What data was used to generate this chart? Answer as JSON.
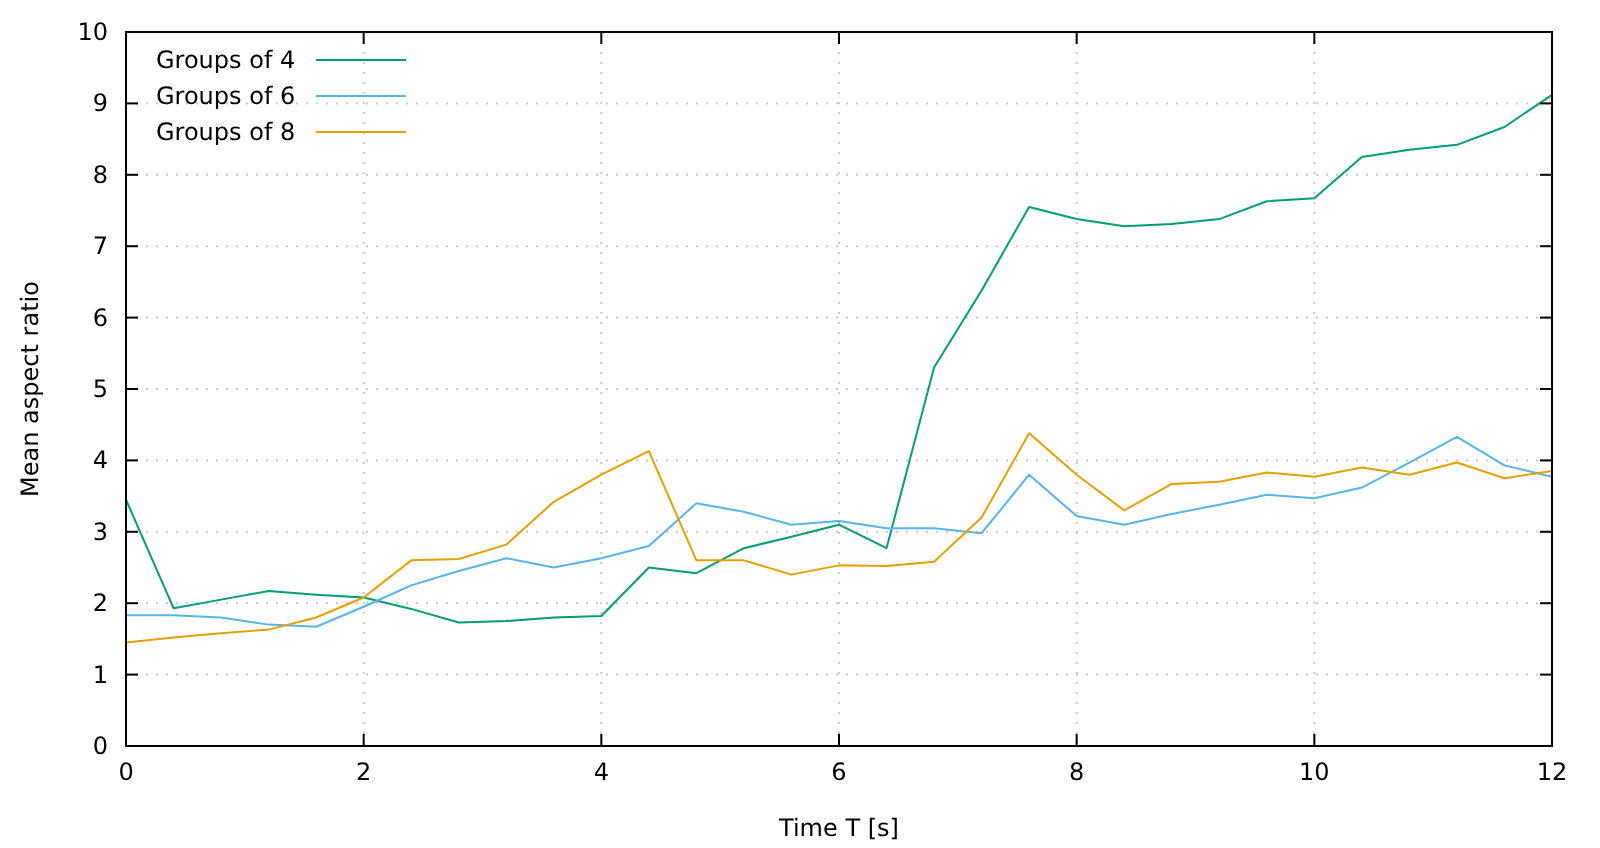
{
  "chart_data": {
    "type": "line",
    "xlabel": "Time T [s]",
    "ylabel": "Mean aspect ratio",
    "x": [
      0,
      0.4,
      0.8,
      1.2,
      1.6,
      2.0,
      2.4,
      2.8,
      3.2,
      3.6,
      4.0,
      4.4,
      4.8,
      5.2,
      5.6,
      6.0,
      6.4,
      6.8,
      7.2,
      7.6,
      8.0,
      8.4,
      8.8,
      9.2,
      9.6,
      10.0,
      10.4,
      10.8,
      11.2,
      11.6,
      12.0
    ],
    "series": [
      {
        "name": "Groups of 4",
        "color": "#009e73",
        "values": [
          3.45,
          1.93,
          2.05,
          2.17,
          2.12,
          2.08,
          1.92,
          1.73,
          1.75,
          1.8,
          1.82,
          2.5,
          2.42,
          2.77,
          2.93,
          3.1,
          2.77,
          5.3,
          6.38,
          7.55,
          7.38,
          7.28,
          7.31,
          7.38,
          7.63,
          7.67,
          8.25,
          8.35,
          8.42,
          8.67,
          9.12
        ]
      },
      {
        "name": "Groups of 6",
        "color": "#56b4e9",
        "values": [
          1.83,
          1.83,
          1.8,
          1.7,
          1.67,
          1.95,
          2.25,
          2.45,
          2.63,
          2.5,
          2.63,
          2.8,
          3.4,
          3.28,
          3.1,
          3.15,
          3.05,
          3.05,
          2.98,
          3.8,
          3.22,
          3.1,
          3.25,
          3.38,
          3.52,
          3.47,
          3.62,
          3.97,
          4.33,
          3.93,
          3.77
        ]
      },
      {
        "name": "Groups of 8",
        "color": "#e69f00",
        "values": [
          1.45,
          1.52,
          1.58,
          1.63,
          1.8,
          2.08,
          2.6,
          2.62,
          2.82,
          3.42,
          3.8,
          4.13,
          2.6,
          2.6,
          2.4,
          2.53,
          2.52,
          2.58,
          3.2,
          4.38,
          3.8,
          3.3,
          3.67,
          3.7,
          3.83,
          3.77,
          3.9,
          3.8,
          3.97,
          3.75,
          3.85
        ]
      }
    ],
    "xlim": [
      0,
      12
    ],
    "xticks": [
      0,
      2,
      4,
      6,
      8,
      10,
      12
    ],
    "ylim": [
      0,
      10
    ],
    "yticks": [
      0,
      1,
      2,
      3,
      4,
      5,
      6,
      7,
      8,
      9,
      10
    ],
    "grid": true,
    "legend": "top left",
    "marker": "none",
    "line_style": "solid"
  }
}
